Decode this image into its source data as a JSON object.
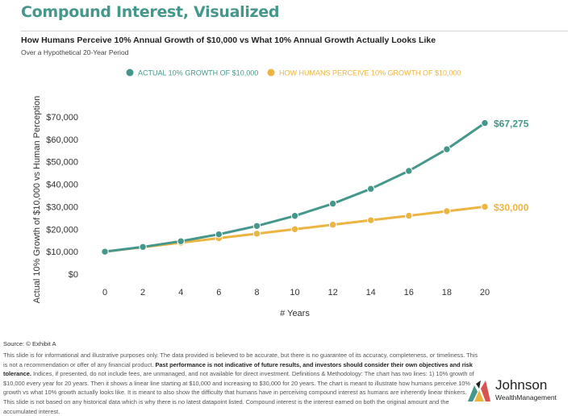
{
  "header": {
    "title": "Compound Interest, Visualized",
    "subtitle": "How Humans Perceive 10% Annual Growth of $10,000 vs What 10% Annual Growth Actually Looks Like",
    "period": "Over a Hypothetical 20-Year Period"
  },
  "chart_data": {
    "type": "line",
    "x": [
      0,
      2,
      4,
      6,
      8,
      10,
      12,
      14,
      16,
      18,
      20
    ],
    "xlabel": "# Years",
    "ylabel": "Actual 10% Growth of $10,000 vs Human Perception",
    "ylim": [
      0,
      70000
    ],
    "yticks": [
      0,
      10000,
      20000,
      30000,
      40000,
      50000,
      60000,
      70000
    ],
    "ytick_labels": [
      "$0",
      "$10,000",
      "$20,000",
      "$30,000",
      "$40,000",
      "$50,000",
      "$60,000",
      "$70,000"
    ],
    "grid": false,
    "legend_position": "top-center",
    "series": [
      {
        "name": "ACTUAL 10% GROWTH OF $10,000",
        "color": "#45978b",
        "values": [
          10000,
          12100,
          14641,
          17716,
          21436,
          25937,
          31384,
          37975,
          45950,
          55599,
          67275
        ],
        "end_label": "$67,275"
      },
      {
        "name": "HOW HUMANS PERCEIVE 10% GROWTH OF $10,000",
        "color": "#ecb440",
        "values": [
          10000,
          12000,
          14000,
          16000,
          18000,
          20000,
          22000,
          24000,
          26000,
          28000,
          30000
        ],
        "end_label": "$30,000"
      }
    ]
  },
  "footer": {
    "source": "Source: © Exhibit A",
    "disclaimer_1": "This slide is for informational and illustrative purposes only. The data provided is believed to be accurate, but there is no guarantee of its accuracy, completeness, or timeliness. This is not a recommendation or offer of any financial product.",
    "disclaimer_bold": "Past performance is not indicative of future results, and investors should consider their own objectives and risk tolerance.",
    "disclaimer_2": "Indices, if presented, do not include fees, are unmanaged, and not available for direct investment. Definitions & Methodology: The chart has two lines: 1) 10% growth of $10,000 every year for 20 years. Then it shows a linear line starting at $10,000 and increasing to $30,000 for 20 years. The chart is meant to illustrate how humans perceive 10% growth vs what 10% growth actually looks like. It is meant to also show the difficulty that humans have in perceiving compound interest as humans are inherently linear thinkers. This slide is not based on any historical data which is why there is no latest datapoint listed. Compound interest is the interest earned on both the original amount and the accumulated interest."
  },
  "logo": {
    "name": "Johnson",
    "sub": "WealthManagement",
    "colors": [
      "#45978b",
      "#ecb440",
      "#d9534f",
      "#222222"
    ]
  }
}
